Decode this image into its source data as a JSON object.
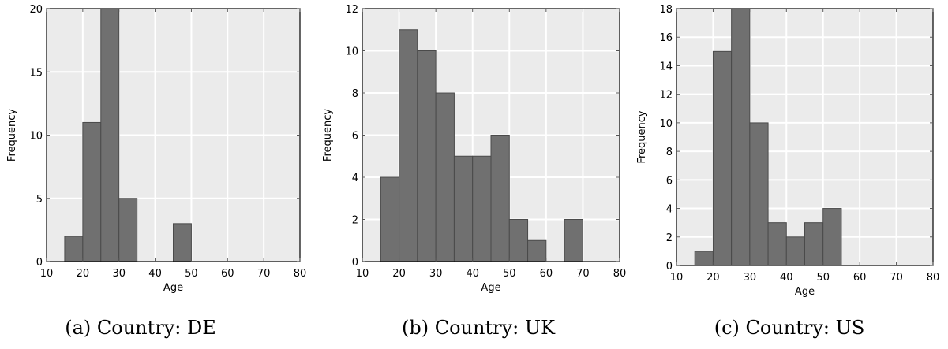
{
  "chart_data": [
    {
      "type": "bar",
      "caption": "(a) Country: DE",
      "xlabel": "Age",
      "ylabel": "Frequency",
      "xlim": [
        10,
        80
      ],
      "ylim": [
        0,
        20
      ],
      "xticks": [
        "10",
        "20",
        "30",
        "40",
        "50",
        "60",
        "70",
        "80"
      ],
      "yticks": [
        "0",
        "5",
        "10",
        "15",
        "20"
      ],
      "bin_edges": [
        15,
        20,
        25,
        30,
        35,
        40,
        45,
        50,
        55,
        60,
        65,
        70,
        75
      ],
      "values": [
        2,
        11,
        20,
        5,
        0,
        0,
        3,
        0,
        0,
        0,
        0,
        0
      ],
      "grid": true,
      "bar_color": "#707070",
      "background": "#ebebeb"
    },
    {
      "type": "bar",
      "caption": "(b) Country: UK",
      "xlabel": "Age",
      "ylabel": "Frequency",
      "xlim": [
        10,
        80
      ],
      "ylim": [
        0,
        12
      ],
      "xticks": [
        "10",
        "20",
        "30",
        "40",
        "50",
        "60",
        "70",
        "80"
      ],
      "yticks": [
        "0",
        "2",
        "4",
        "6",
        "8",
        "10",
        "12"
      ],
      "bin_edges": [
        15,
        20,
        25,
        30,
        35,
        40,
        45,
        50,
        55,
        60,
        65,
        70,
        75
      ],
      "values": [
        4,
        11,
        10,
        8,
        5,
        5,
        6,
        2,
        1,
        0,
        2,
        0
      ],
      "grid": true,
      "bar_color": "#707070",
      "background": "#ebebeb"
    },
    {
      "type": "bar",
      "caption": "(c) Country: US",
      "xlabel": "Age",
      "ylabel": "Frequency",
      "xlim": [
        10,
        80
      ],
      "ylim": [
        0,
        18
      ],
      "xticks": [
        "10",
        "20",
        "30",
        "40",
        "50",
        "60",
        "70",
        "80"
      ],
      "yticks": [
        "0",
        "2",
        "4",
        "6",
        "8",
        "10",
        "12",
        "14",
        "16",
        "18"
      ],
      "bin_edges": [
        15,
        20,
        25,
        30,
        35,
        40,
        45,
        50,
        55,
        60,
        65,
        70,
        75
      ],
      "values": [
        1,
        15,
        18,
        10,
        3,
        2,
        3,
        4,
        0,
        0,
        0,
        0
      ],
      "grid": true,
      "bar_color": "#707070",
      "background": "#ebebeb"
    }
  ]
}
